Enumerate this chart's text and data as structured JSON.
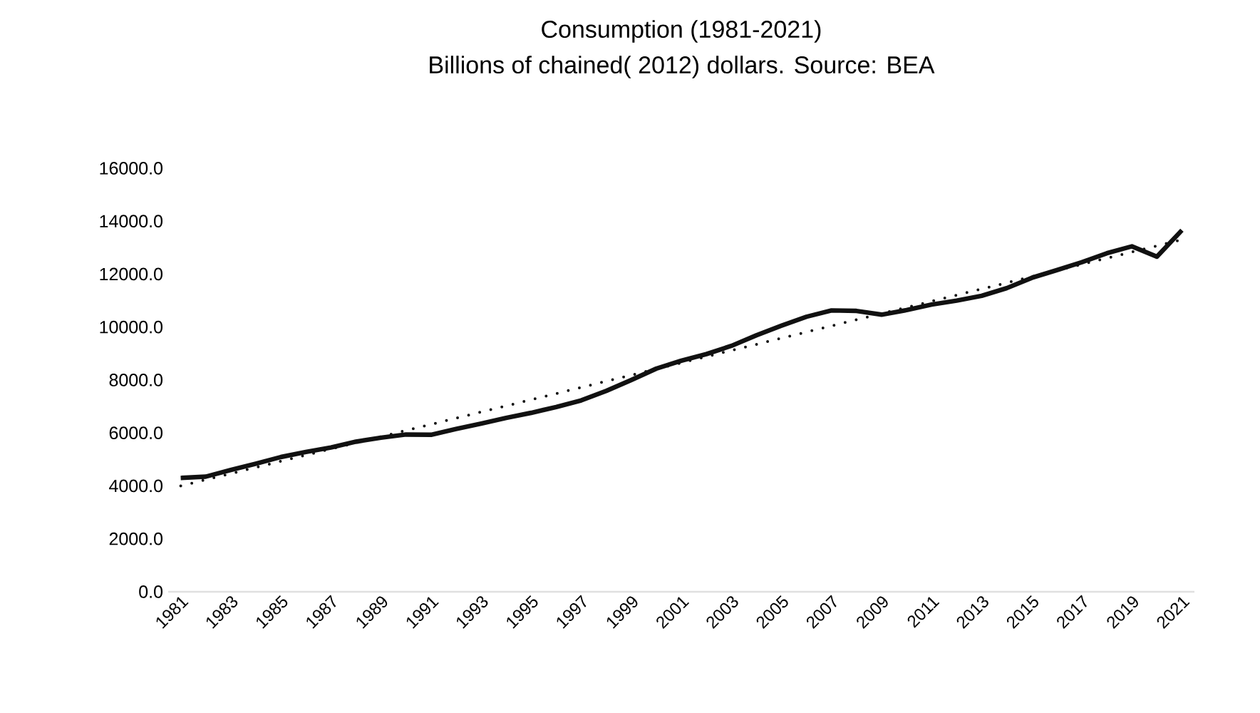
{
  "chart_data": {
    "type": "line",
    "title": "Consumption (1981-2021)",
    "subtitle": "Billions of chained( 2012) dollars. Source: BEA",
    "series": [
      {
        "color": "#111111",
        "line_style": "solid",
        "x": [
          1981,
          1982,
          1983,
          1984,
          1985,
          1986,
          1987,
          1988,
          1989,
          1990,
          1991,
          1992,
          1993,
          1994,
          1995,
          1996,
          1997,
          1998,
          1999,
          2000,
          2001,
          2002,
          2003,
          2004,
          2005,
          2006,
          2007,
          2008,
          2009,
          2010,
          2011,
          2012,
          2013,
          2014,
          2015,
          2016,
          2017,
          2018,
          2019,
          2020,
          2021
        ],
        "values": [
          4300,
          4350,
          4600,
          4840,
          5090,
          5280,
          5450,
          5670,
          5820,
          5940,
          5930,
          6150,
          6350,
          6570,
          6760,
          6980,
          7230,
          7590,
          8000,
          8430,
          8730,
          8980,
          9290,
          9690,
          10050,
          10390,
          10630,
          10610,
          10470,
          10640,
          10850,
          11000,
          11180,
          11470,
          11860,
          12150,
          12450,
          12790,
          13050,
          12660,
          13660
        ]
      },
      {
        "color": "#111111",
        "line_style": "dotted",
        "x": [
          1981,
          2021
        ],
        "values": [
          4000,
          13300
        ]
      }
    ],
    "xlim": [
      1980.5,
      2021.5
    ],
    "xticks": [
      1981,
      1983,
      1985,
      1987,
      1989,
      1991,
      1993,
      1995,
      1997,
      1999,
      2001,
      2003,
      2005,
      2007,
      2009,
      2011,
      2013,
      2015,
      2017,
      2019,
      2021
    ],
    "ylim": [
      0,
      16000
    ],
    "yticks": [
      {
        "value": 0,
        "label": "0.0"
      },
      {
        "value": 2000,
        "label": "2000.0"
      },
      {
        "value": 4000,
        "label": "4000.0"
      },
      {
        "value": 6000,
        "label": "6000.0"
      },
      {
        "value": 8000,
        "label": "8000.0"
      },
      {
        "value": 10000,
        "label": "10000.0"
      },
      {
        "value": 12000,
        "label": "12000.0"
      },
      {
        "value": 14000,
        "label": "14000.0"
      },
      {
        "value": 16000,
        "label": "16000.0"
      }
    ],
    "grid": false,
    "legend": false,
    "marker": "none"
  }
}
